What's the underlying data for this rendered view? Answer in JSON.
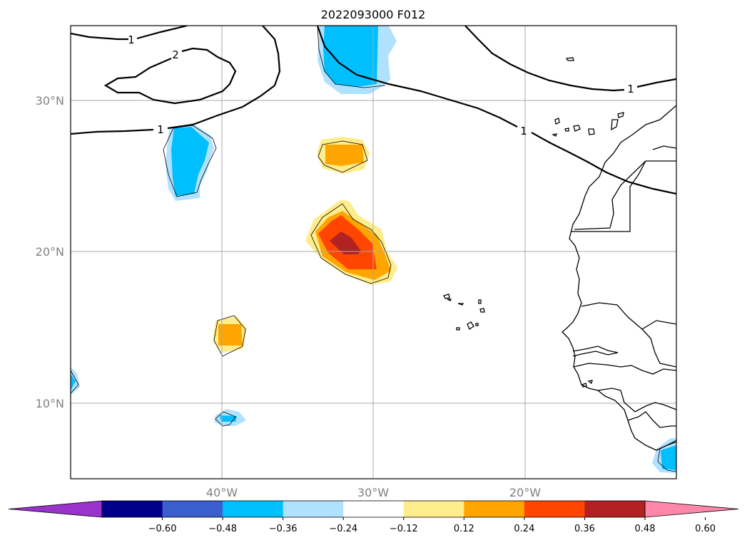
{
  "title": "2022093000 F012",
  "axes": {
    "lat_labels": [
      "30°N",
      "20°N",
      "10°N"
    ],
    "lon_labels": [
      "40°W",
      "30°W",
      "20°W"
    ]
  },
  "contour_labels": [
    "1",
    "2",
    "1",
    "1",
    "1"
  ],
  "colorbar": {
    "ticks": [
      "−0.60",
      "−0.48",
      "−0.36",
      "−0.24",
      "−0.12",
      "0.12",
      "0.24",
      "0.36",
      "0.48",
      "0.60"
    ],
    "colors": [
      "#9933cc",
      "#00008b",
      "#3a5fcd",
      "#00bfff",
      "#b0e2ff",
      "#ffffff",
      "#ffec8b",
      "#ffa500",
      "#ff4500",
      "#b22222",
      "#ff88aa"
    ]
  },
  "palette": {
    "blue": "#00bfff",
    "lightblue": "#b0e2ff",
    "yellow": "#ffec8b",
    "orange": "#ffa500",
    "redorange": "#ff4500",
    "darkred": "#b22222"
  }
}
